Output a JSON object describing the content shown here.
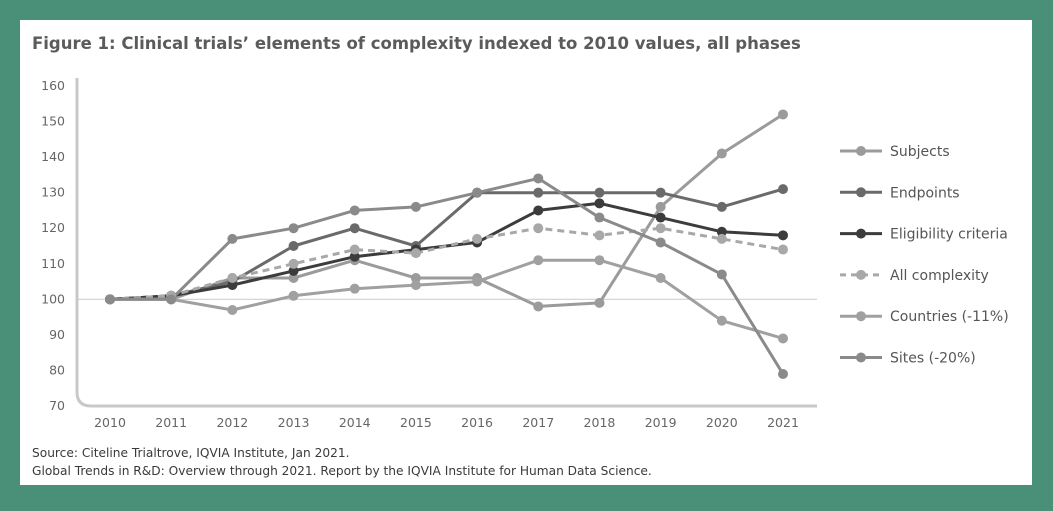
{
  "figure": {
    "title": "Figure 1: Clinical trials’ elements of complexity indexed to 2010 values, all phases",
    "source_line": "Source: Citeline Trialtrove, IQVIA Institute, Jan 2021.",
    "credit_line": "Global Trends in R&D: Overview through 2021. Report by the IQVIA Institute for Human Data Science."
  },
  "chart_data": {
    "type": "line",
    "title": "Figure 1: Clinical trials’ elements of complexity indexed to 2010 values, all phases",
    "xlabel": "",
    "ylabel": "",
    "x": [
      "2010",
      "2011",
      "2012",
      "2013",
      "2014",
      "2015",
      "2016",
      "2017",
      "2018",
      "2019",
      "2020",
      "2021"
    ],
    "ylim": [
      70,
      160
    ],
    "yticks": [
      70,
      80,
      90,
      100,
      110,
      120,
      130,
      140,
      150,
      160
    ],
    "reference_line": 100,
    "legend_position": "right",
    "series": [
      {
        "name": "Subjects",
        "color": "#9b9b9b",
        "dashed": false,
        "values": [
          100,
          100,
          106,
          106,
          111,
          106,
          106,
          98,
          99,
          126,
          141,
          152
        ]
      },
      {
        "name": "Endpoints",
        "color": "#6a6a6a",
        "dashed": false,
        "values": [
          100,
          101,
          105,
          115,
          120,
          115,
          130,
          130,
          130,
          130,
          126,
          131
        ]
      },
      {
        "name": "Eligibility criteria",
        "color": "#3c3c3c",
        "dashed": false,
        "values": [
          100,
          101,
          104,
          108,
          112,
          114,
          116,
          125,
          127,
          123,
          119,
          118
        ]
      },
      {
        "name": "All complexity",
        "color": "#a8a8a8",
        "dashed": true,
        "values": [
          100,
          101,
          106,
          110,
          114,
          113,
          117,
          120,
          118,
          120,
          117,
          114
        ]
      },
      {
        "name": "Countries (-11%)",
        "color": "#a0a0a0",
        "dashed": false,
        "values": [
          100,
          100,
          97,
          101,
          103,
          104,
          105,
          111,
          111,
          106,
          94,
          89
        ]
      },
      {
        "name": "Sites (-20%)",
        "color": "#8a8a8a",
        "dashed": false,
        "values": [
          100,
          100,
          117,
          120,
          125,
          126,
          130,
          134,
          123,
          116,
          107,
          79
        ]
      }
    ]
  }
}
